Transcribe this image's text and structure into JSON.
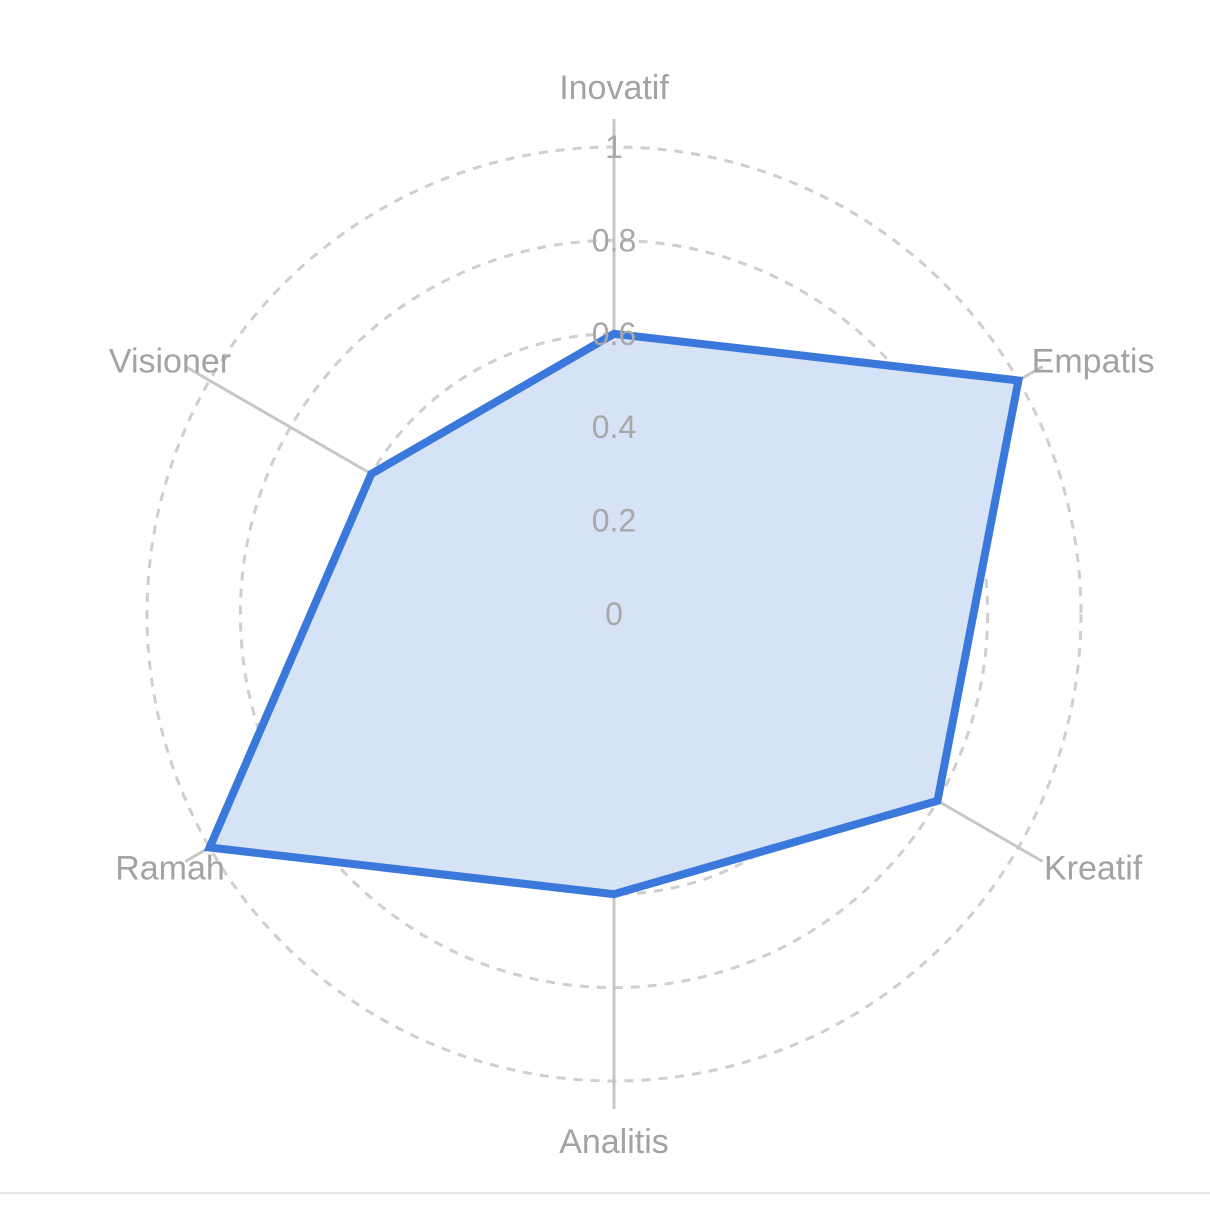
{
  "chart_data": {
    "type": "radar",
    "title": "",
    "axes": [
      "Inovatif",
      "Empatis",
      "Kreatif",
      "Analitis",
      "Ramah",
      "Visioner"
    ],
    "series": [
      {
        "values": [
          0.6,
          1.0,
          0.8,
          0.6,
          1.0,
          0.6
        ],
        "color": "#3a78dc",
        "fill": "#d6e2f5"
      }
    ],
    "rlim": [
      0,
      1
    ],
    "ticks": [
      "0",
      "0.2",
      "0.4",
      "0.6",
      "0.8",
      "1"
    ],
    "grid": true,
    "grid_style": "dashed circles",
    "legend": "none"
  }
}
